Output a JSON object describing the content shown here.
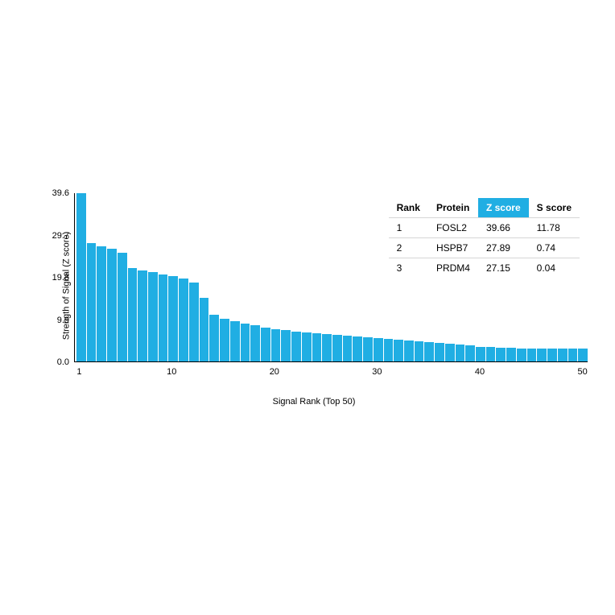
{
  "chart": {
    "type": "bar",
    "y_label": "Strength of Signal (Z score)",
    "x_label": "Signal Rank (Top 50)",
    "bar_color": "#20aee3",
    "background_color": "#ffffff",
    "axis_color": "#000000",
    "label_fontsize": 11,
    "tick_fontsize": 11,
    "ylim": [
      0,
      39.6
    ],
    "y_ticks": [
      {
        "value": 0.0,
        "label": "0.0"
      },
      {
        "value": 9.9,
        "label": "9.9"
      },
      {
        "value": 19.8,
        "label": "19.8"
      },
      {
        "value": 29.7,
        "label": "29.7"
      },
      {
        "value": 39.6,
        "label": "39.6"
      }
    ],
    "x_ticks": [
      {
        "pos": 1,
        "label": "1"
      },
      {
        "pos": 10,
        "label": "10"
      },
      {
        "pos": 20,
        "label": "20"
      },
      {
        "pos": 30,
        "label": "30"
      },
      {
        "pos": 40,
        "label": "40"
      },
      {
        "pos": 50,
        "label": "50"
      }
    ],
    "n_bars": 50,
    "values": [
      39.66,
      27.89,
      27.15,
      26.5,
      25.5,
      22.0,
      21.5,
      21.0,
      20.5,
      20.0,
      19.5,
      18.5,
      15.0,
      11.0,
      10.0,
      9.5,
      9.0,
      8.5,
      8.0,
      7.5,
      7.3,
      7.1,
      6.9,
      6.7,
      6.5,
      6.3,
      6.1,
      5.9,
      5.7,
      5.5,
      5.3,
      5.1,
      4.9,
      4.7,
      4.5,
      4.3,
      4.1,
      3.9,
      3.7,
      3.5,
      3.4,
      3.3,
      3.2,
      3.1,
      3.0,
      3.0,
      3.0,
      3.0,
      3.0,
      3.0
    ]
  },
  "table": {
    "header_highlight_bg": "#20aee3",
    "header_highlight_fg": "#ffffff",
    "border_color": "#d6d6d6",
    "fontsize": 12,
    "columns": [
      {
        "key": "rank",
        "label": "Rank",
        "highlight": false
      },
      {
        "key": "protein",
        "label": "Protein",
        "highlight": false
      },
      {
        "key": "zscore",
        "label": "Z score",
        "highlight": true
      },
      {
        "key": "sscore",
        "label": "S score",
        "highlight": false
      }
    ],
    "rows": [
      {
        "rank": "1",
        "protein": "FOSL2",
        "zscore": "39.66",
        "sscore": "11.78"
      },
      {
        "rank": "2",
        "protein": "HSPB7",
        "zscore": "27.89",
        "sscore": "0.74"
      },
      {
        "rank": "3",
        "protein": "PRDM4",
        "zscore": "27.15",
        "sscore": "0.04"
      }
    ]
  }
}
